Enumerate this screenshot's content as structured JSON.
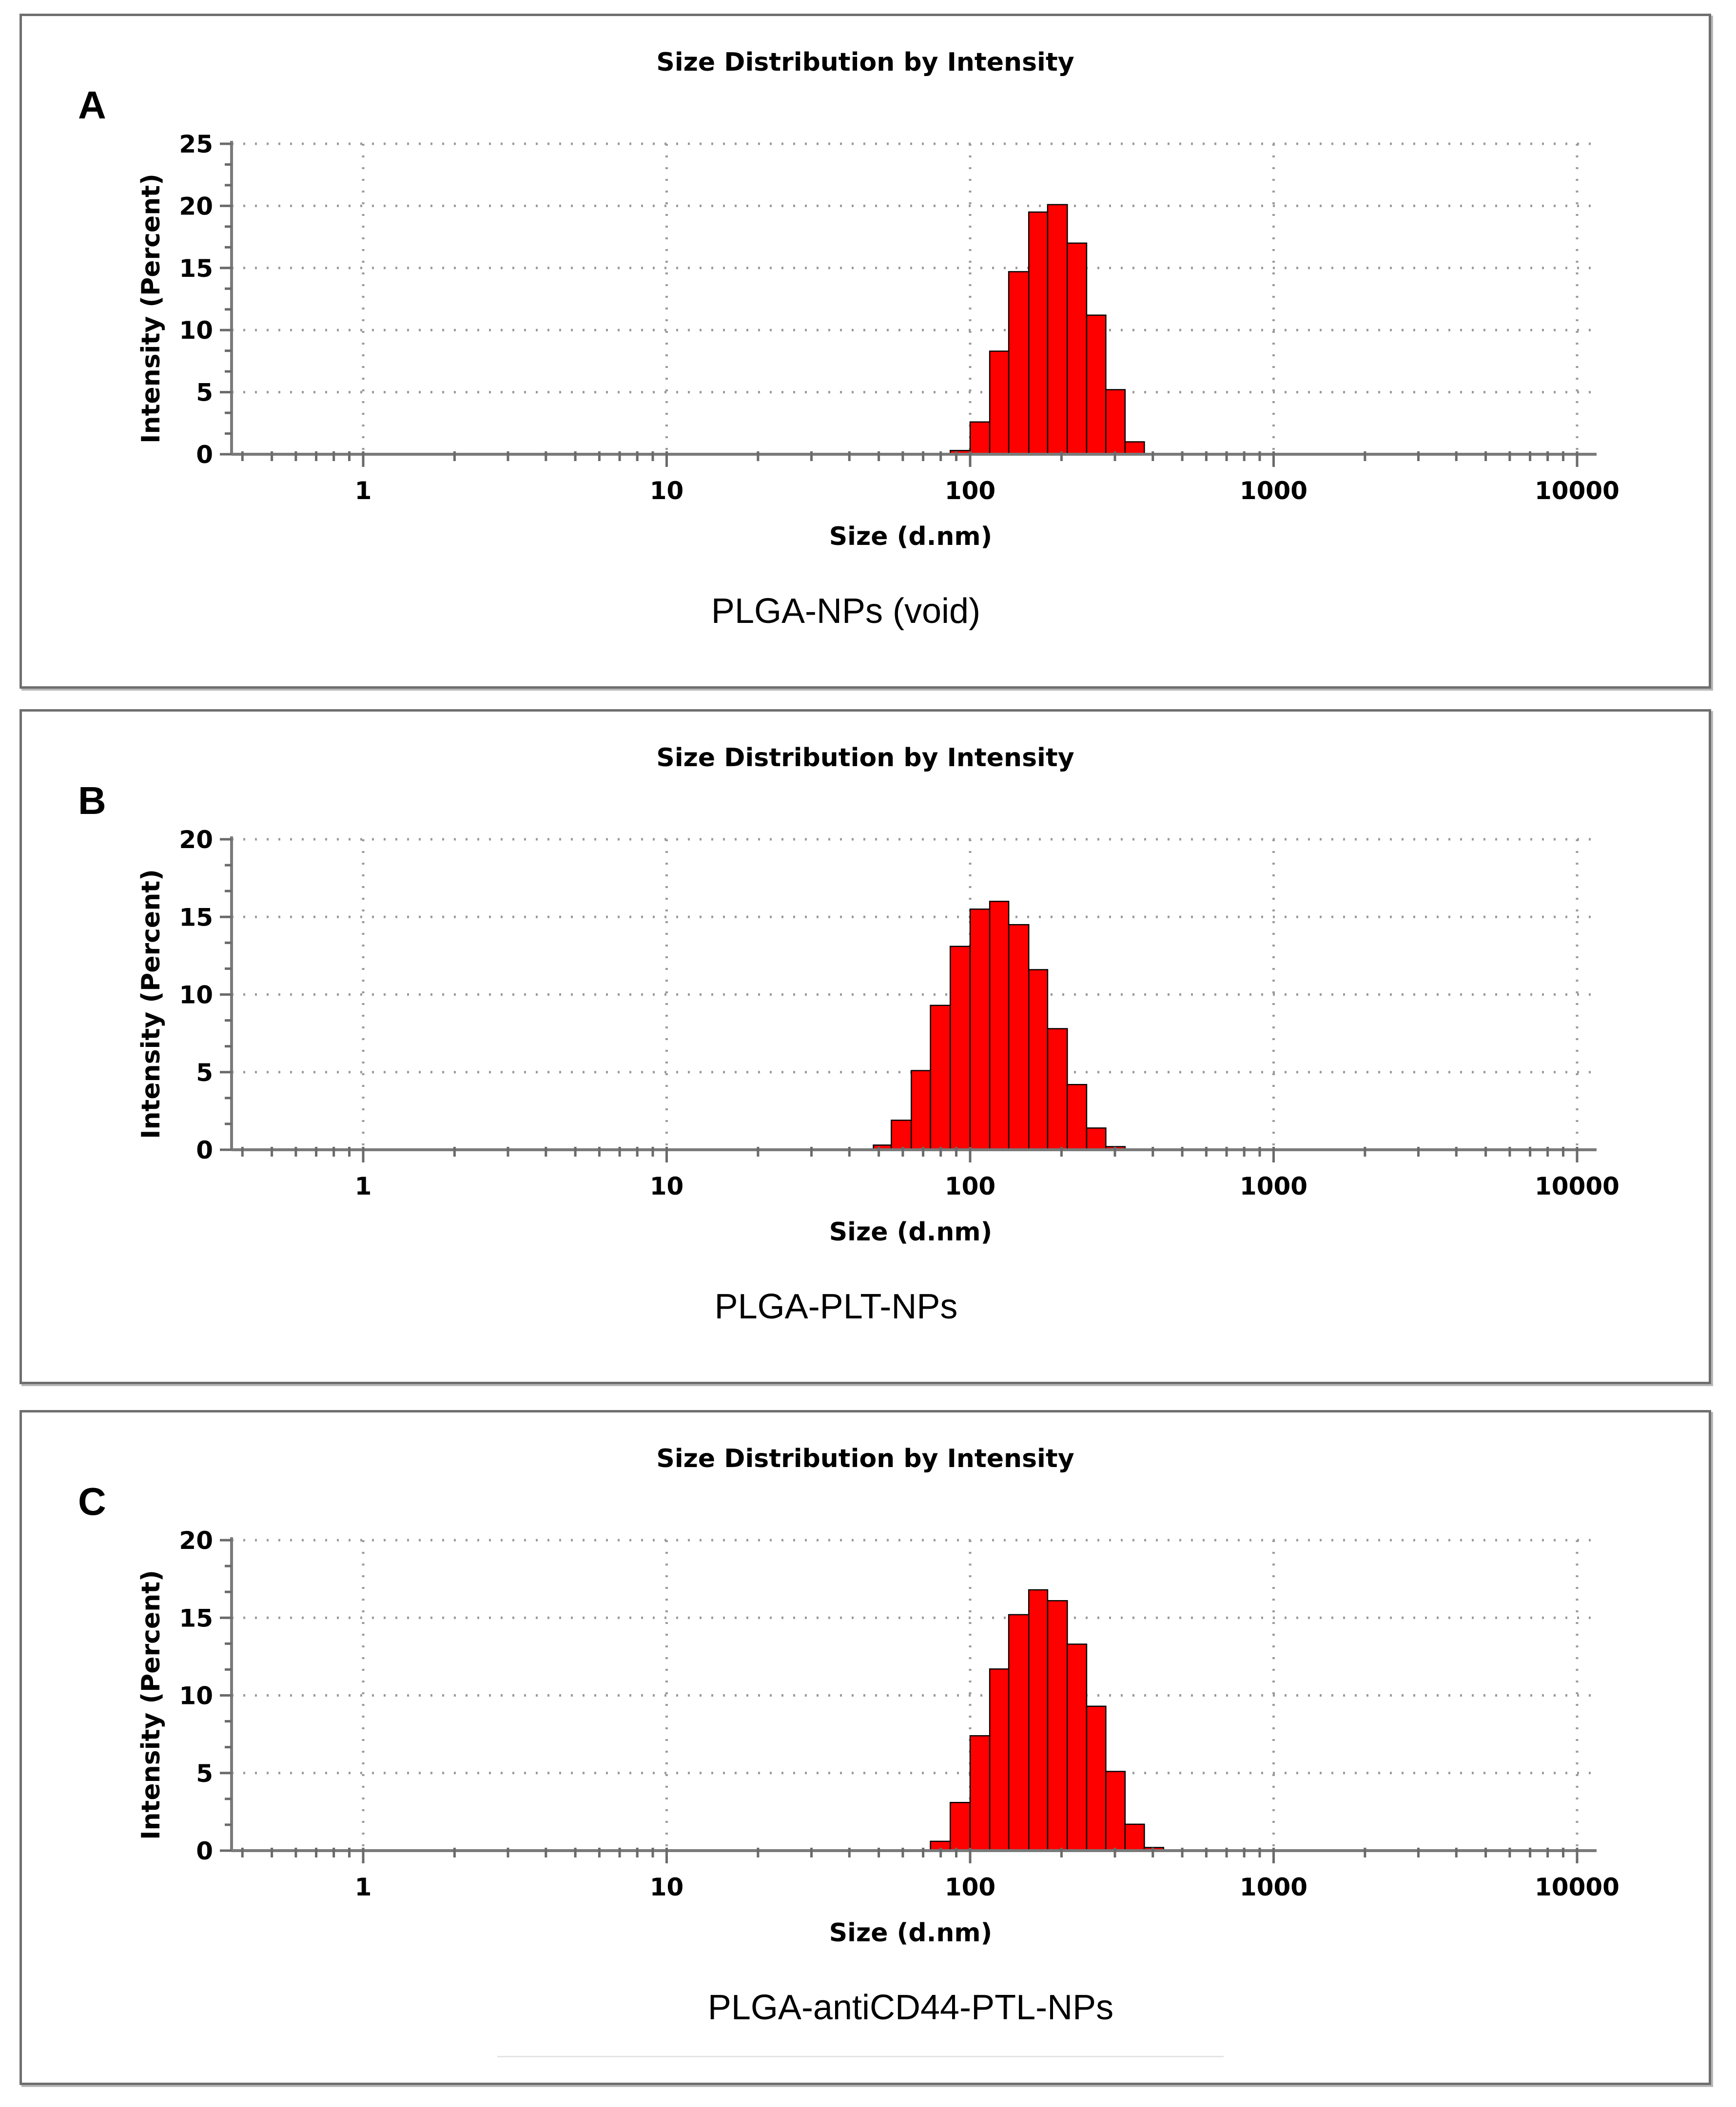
{
  "chart_data": [
    {
      "type": "bar",
      "panel_label": "A",
      "title": "Size Distribution by Intensity",
      "xlabel": "Size (d.nm)",
      "ylabel": "Intensity (Percent)",
      "caption": "PLGA-NPs (void)",
      "x_scale": "log",
      "xlim": [
        0.4,
        10000
      ],
      "ylim": [
        0,
        25
      ],
      "x_ticks": [
        "1",
        "10",
        "100",
        "1000",
        "10000"
      ],
      "y_ticks": [
        "0",
        "5",
        "10",
        "15",
        "20",
        "25"
      ],
      "grid": true,
      "bar_color": "#ff0000",
      "bins": [
        {
          "from": 86,
          "to": 100,
          "value": 0.3
        },
        {
          "from": 100,
          "to": 116,
          "value": 2.6
        },
        {
          "from": 116,
          "to": 134,
          "value": 8.3
        },
        {
          "from": 134,
          "to": 156,
          "value": 14.7
        },
        {
          "from": 156,
          "to": 180,
          "value": 19.5
        },
        {
          "from": 180,
          "to": 209,
          "value": 20.1
        },
        {
          "from": 209,
          "to": 242,
          "value": 17.0
        },
        {
          "from": 242,
          "to": 280,
          "value": 11.2
        },
        {
          "from": 280,
          "to": 324,
          "value": 5.2
        },
        {
          "from": 324,
          "to": 375,
          "value": 1.0
        }
      ]
    },
    {
      "type": "bar",
      "panel_label": "B",
      "title": "Size Distribution by Intensity",
      "xlabel": "Size (d.nm)",
      "ylabel": "Intensity (Percent)",
      "caption": "PLGA-PLT-NPs",
      "x_scale": "log",
      "xlim": [
        0.4,
        10000
      ],
      "ylim": [
        0,
        20
      ],
      "x_ticks": [
        "1",
        "10",
        "100",
        "1000",
        "10000"
      ],
      "y_ticks": [
        "0",
        "5",
        "10",
        "15",
        "20"
      ],
      "grid": true,
      "bar_color": "#ff0000",
      "bins": [
        {
          "from": 48,
          "to": 55,
          "value": 0.3
        },
        {
          "from": 55,
          "to": 64,
          "value": 1.9
        },
        {
          "from": 64,
          "to": 74,
          "value": 5.1
        },
        {
          "from": 74,
          "to": 86,
          "value": 9.3
        },
        {
          "from": 86,
          "to": 100,
          "value": 13.1
        },
        {
          "from": 100,
          "to": 116,
          "value": 15.5
        },
        {
          "from": 116,
          "to": 134,
          "value": 16.0
        },
        {
          "from": 134,
          "to": 156,
          "value": 14.5
        },
        {
          "from": 156,
          "to": 180,
          "value": 11.6
        },
        {
          "from": 180,
          "to": 209,
          "value": 7.8
        },
        {
          "from": 209,
          "to": 242,
          "value": 4.2
        },
        {
          "from": 242,
          "to": 280,
          "value": 1.4
        },
        {
          "from": 280,
          "to": 324,
          "value": 0.2
        }
      ]
    },
    {
      "type": "bar",
      "panel_label": "C",
      "title": "Size Distribution by Intensity",
      "xlabel": "Size (d.nm)",
      "ylabel": "Intensity (Percent)",
      "caption": "PLGA-antiCD44-PTL-NPs",
      "x_scale": "log",
      "xlim": [
        0.4,
        10000
      ],
      "ylim": [
        0,
        20
      ],
      "x_ticks": [
        "1",
        "10",
        "100",
        "1000",
        "10000"
      ],
      "y_ticks": [
        "0",
        "5",
        "10",
        "15",
        "20"
      ],
      "grid": true,
      "bar_color": "#ff0000",
      "bins": [
        {
          "from": 74,
          "to": 86,
          "value": 0.6
        },
        {
          "from": 86,
          "to": 100,
          "value": 3.1
        },
        {
          "from": 100,
          "to": 116,
          "value": 7.4
        },
        {
          "from": 116,
          "to": 134,
          "value": 11.7
        },
        {
          "from": 134,
          "to": 156,
          "value": 15.2
        },
        {
          "from": 156,
          "to": 180,
          "value": 16.8
        },
        {
          "from": 180,
          "to": 209,
          "value": 16.1
        },
        {
          "from": 209,
          "to": 242,
          "value": 13.3
        },
        {
          "from": 242,
          "to": 280,
          "value": 9.3
        },
        {
          "from": 280,
          "to": 324,
          "value": 5.1
        },
        {
          "from": 324,
          "to": 375,
          "value": 1.7
        },
        {
          "from": 375,
          "to": 434,
          "value": 0.2
        }
      ]
    }
  ]
}
